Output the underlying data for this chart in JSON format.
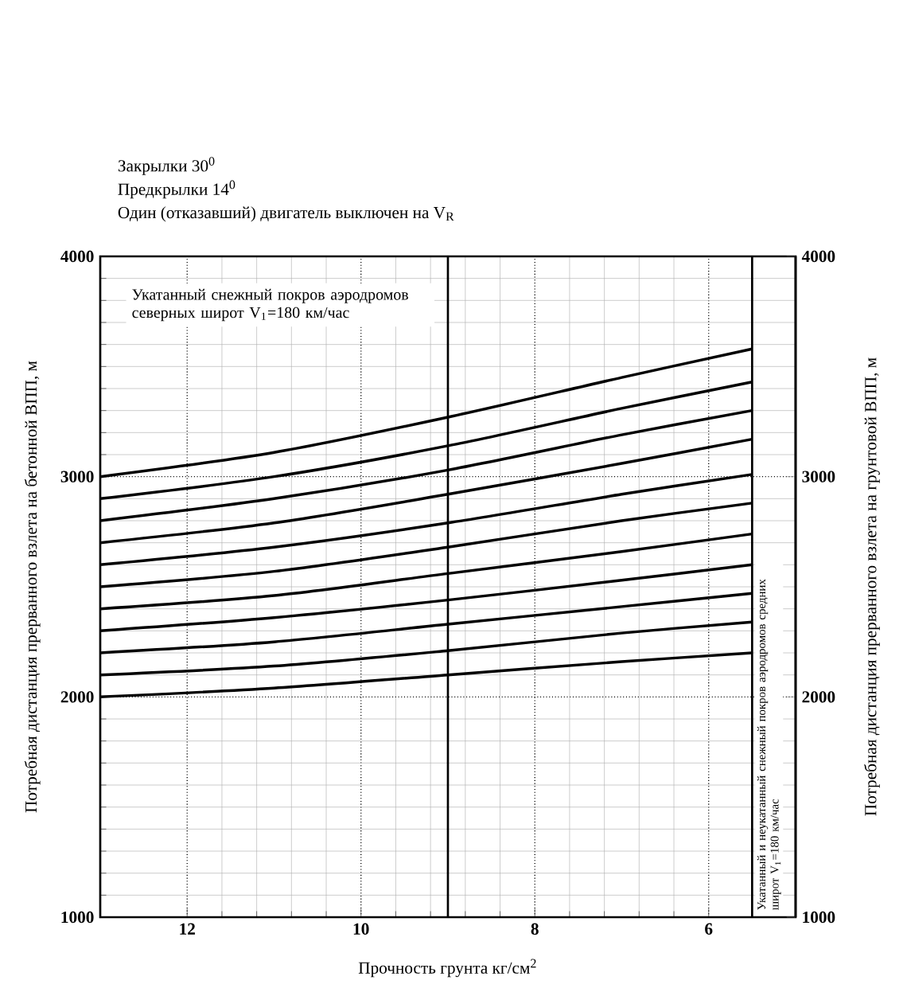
{
  "chart_data": {
    "type": "line",
    "annotations": [
      "Закрылки 30$^{0}$",
      "Предкрылки 14$^{0}$",
      "Один (отказавший) двигатель выключен на V$_{R}$",
      "Укатанный снежный покров аэродромов северных широт V$_{1}$=180 км/час",
      "Укатанный и неукатанный снежный покров аэродромов средних широт V$_{1}$=180 км/час"
    ],
    "xlabel": "Прочность грунта кг/см$^{2}$",
    "ylabel": "Потребная дистанция прерванного взлета на бетонной ВПП, м",
    "y2label": "Потребная дистанция прерванного взлета на грунтовой ВПП, м",
    "x": [
      13,
      11,
      9,
      7,
      5.5
    ],
    "series": [
      {
        "color": "#000000",
        "values": [
          3000,
          3110,
          3270,
          3450,
          3580
        ]
      },
      {
        "color": "#000000",
        "values": [
          2900,
          3000,
          3140,
          3310,
          3430
        ]
      },
      {
        "color": "#000000",
        "values": [
          2800,
          2900,
          3030,
          3190,
          3300
        ]
      },
      {
        "color": "#000000",
        "values": [
          2700,
          2790,
          2920,
          3060,
          3170
        ]
      },
      {
        "color": "#000000",
        "values": [
          2600,
          2680,
          2790,
          2920,
          3010
        ]
      },
      {
        "color": "#000000",
        "values": [
          2500,
          2570,
          2680,
          2800,
          2880
        ]
      },
      {
        "color": "#000000",
        "values": [
          2400,
          2460,
          2560,
          2660,
          2740
        ]
      },
      {
        "color": "#000000",
        "values": [
          2300,
          2360,
          2440,
          2530,
          2600
        ]
      },
      {
        "color": "#000000",
        "values": [
          2200,
          2250,
          2330,
          2410,
          2470
        ]
      },
      {
        "color": "#000000",
        "values": [
          2100,
          2140,
          2210,
          2290,
          2340
        ]
      },
      {
        "color": "#000000",
        "values": [
          2000,
          2040,
          2100,
          2160,
          2200
        ]
      }
    ],
    "xlim": [
      13,
      5
    ],
    "xticks": [
      12,
      10,
      8,
      6
    ],
    "ylim": [
      1000,
      4000
    ],
    "yticks": [
      1000,
      2000,
      3000,
      4000
    ],
    "y2lim": [
      1000,
      4000
    ],
    "y2ticks": [
      1000,
      2000,
      3000,
      4000
    ],
    "grid": true,
    "marker": "none",
    "line_style": "solid",
    "ref_lines": [
      {
        "axis": "x",
        "value": 9
      },
      {
        "axis": "x",
        "value": 5.5
      }
    ]
  }
}
